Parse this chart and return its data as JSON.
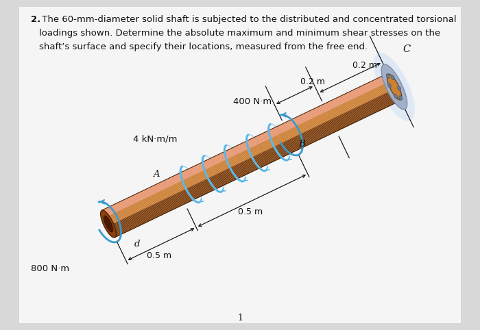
{
  "bg_color": "#d8d8d8",
  "page_color": "#f5f5f5",
  "title_text_bold": "2.",
  "title_text_rest": " The 60-mm-diameter solid shaft is subjected to the distributed and concentrated torsional\nloadings shown. Determine the absolute maximum and minimum shear stresses on the\nshaft’s surface and specify their locations, measured from the free end.",
  "label_400Nm": "400 N·m",
  "label_4kNmm": "4 kN·m/m",
  "label_800Nm": "800 N·m",
  "label_B": "B",
  "label_A": "A",
  "label_C": "C",
  "label_d": "d",
  "label_05m_bot": "0.5 m",
  "label_05m_mid": "0.5 m",
  "label_02m_top": "0.2 m",
  "label_02m_bot": "0.2 m",
  "label_page_num": "1",
  "shaft_color_base": "#B5651D",
  "shaft_color_highlight": "#E8956D",
  "shaft_color_shadow": "#7A3B0A",
  "shaft_color_mid": "#CD7F32",
  "flange_bg": "#c8d4e8",
  "flange_fg": "#a0b0c8",
  "flange_edge": "#8090a8",
  "coil_color": "#5bb8e8",
  "coil_arrow_color": "#3a9acc",
  "dim_color": "#111111",
  "text_color": "#111111"
}
